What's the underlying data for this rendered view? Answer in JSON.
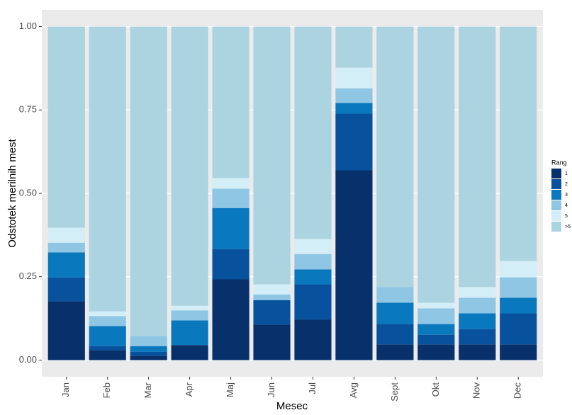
{
  "chart_data": {
    "type": "stacked_bar",
    "x_label": "Mesec",
    "y_label": "Odstotek merilnih mest",
    "categories": [
      "Jan",
      "Feb",
      "Mar",
      "Apr",
      "Maj",
      "Jun",
      "Jul",
      "Avg",
      "Sept",
      "Okt",
      "Nov",
      "Dec"
    ],
    "legend_title": "Rang",
    "legend": "right",
    "series": [
      {
        "name": "1",
        "color": "#08306b",
        "values": [
          0.176,
          0.03,
          0.013,
          0.045,
          0.242,
          0.106,
          0.121,
          0.569,
          0.047,
          0.047,
          0.047,
          0.047
        ]
      },
      {
        "name": "2",
        "color": "#08519c",
        "values": [
          0.072,
          0.012,
          0.012,
          0,
          0.091,
          0.074,
          0.106,
          0.17,
          0.061,
          0.029,
          0.046,
          0.093
        ]
      },
      {
        "name": "3",
        "color": "#0a78bd",
        "values": [
          0.075,
          0.06,
          0.017,
          0.074,
          0.123,
          0,
          0.045,
          0.032,
          0.064,
          0.032,
          0.047,
          0.047
        ]
      },
      {
        "name": "4",
        "color": "#8ec6e4",
        "values": [
          0.029,
          0.03,
          0.03,
          0.03,
          0.058,
          0.017,
          0.046,
          0.044,
          0.047,
          0.047,
          0.047,
          0.061
        ]
      },
      {
        "name": "5",
        "color": "#d3eef7",
        "values": [
          0.045,
          0.014,
          0,
          0.014,
          0.032,
          0.03,
          0.045,
          0.062,
          0,
          0.017,
          0.032,
          0.049
        ]
      },
      {
        "name": ">5",
        "color": "#acd3e0",
        "values": [
          0.603,
          0.854,
          0.928,
          0.837,
          0.454,
          0.773,
          0.637,
          0.123,
          0.781,
          0.828,
          0.781,
          0.703
        ]
      }
    ],
    "ylim": [
      -0.05,
      1.05
    ],
    "yticks": [
      {
        "value": 0,
        "label": "0.00"
      },
      {
        "value": 0.25,
        "label": "0.25"
      },
      {
        "value": 0.5,
        "label": "0.50"
      },
      {
        "value": 0.75,
        "label": "0.75"
      },
      {
        "value": 1,
        "label": "1.00"
      }
    ],
    "grid": true
  }
}
